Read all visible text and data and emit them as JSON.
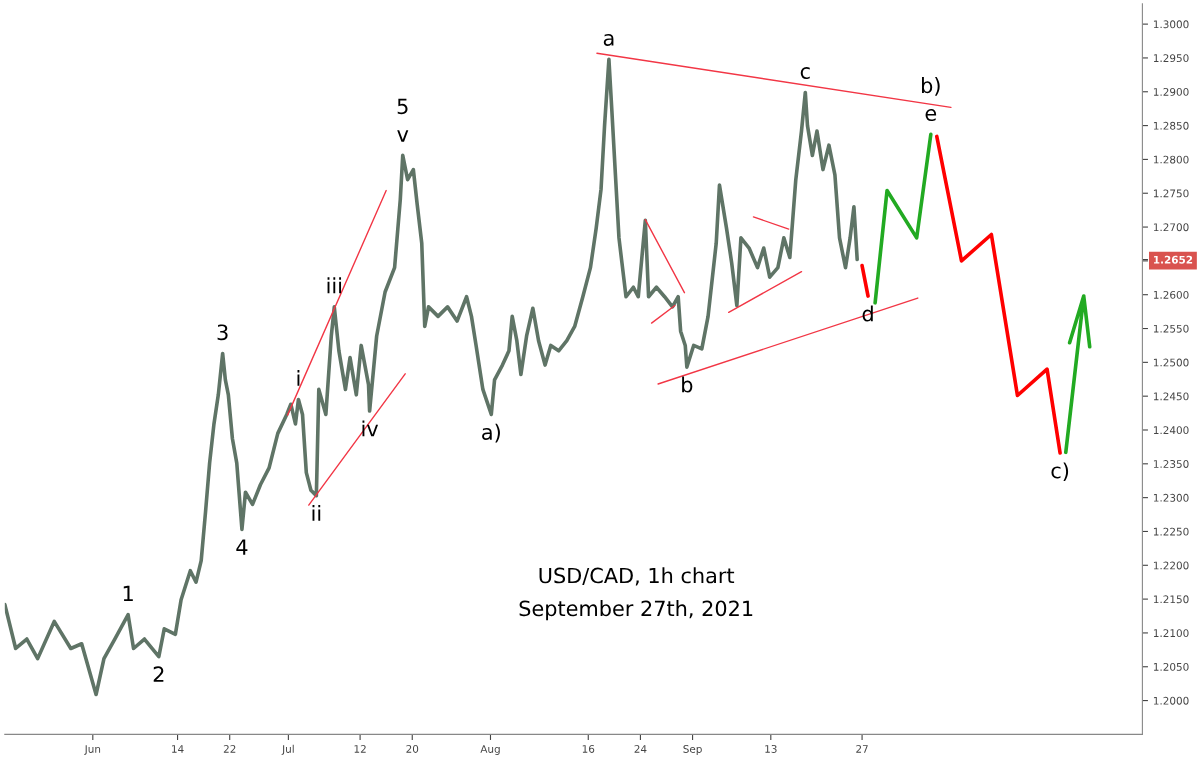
{
  "chart_data": {
    "type": "line",
    "xlim": [
      "2021-05-18T12:00",
      "2021-11-09T00:00"
    ],
    "ylim": [
      1.195,
      1.303
    ],
    "xticks": [
      {
        "value": "2021-06-01",
        "label": "Jun"
      },
      {
        "value": "2021-06-14",
        "label": "14"
      },
      {
        "value": "2021-06-22",
        "label": "22"
      },
      {
        "value": "2021-07-01",
        "label": "Jul"
      },
      {
        "value": "2021-07-12",
        "label": "12"
      },
      {
        "value": "2021-07-20",
        "label": "20"
      },
      {
        "value": "2021-08-01",
        "label": "Aug"
      },
      {
        "value": "2021-08-16",
        "label": "16"
      },
      {
        "value": "2021-08-24",
        "label": "24"
      },
      {
        "value": "2021-09-01",
        "label": "Sep"
      },
      {
        "value": "2021-09-13",
        "label": "13"
      },
      {
        "value": "2021-09-27",
        "label": "27"
      }
    ],
    "yticks": [
      {
        "value": 1.2,
        "label": "1.2000"
      },
      {
        "value": 1.205,
        "label": "1.2050"
      },
      {
        "value": 1.21,
        "label": "1.2100"
      },
      {
        "value": 1.215,
        "label": "1.2150"
      },
      {
        "value": 1.22,
        "label": "1.2200"
      },
      {
        "value": 1.225,
        "label": "1.2250"
      },
      {
        "value": 1.23,
        "label": "1.2300"
      },
      {
        "value": 1.235,
        "label": "1.2350"
      },
      {
        "value": 1.24,
        "label": "1.2400"
      },
      {
        "value": 1.245,
        "label": "1.2450"
      },
      {
        "value": 1.25,
        "label": "1.2500"
      },
      {
        "value": 1.255,
        "label": "1.2550"
      },
      {
        "value": 1.26,
        "label": "1.2600"
      },
      {
        "value": 1.265,
        "label": null
      },
      {
        "value": 1.2652,
        "label": "1.2652"
      },
      {
        "value": 1.27,
        "label": "1.2700"
      },
      {
        "value": 1.275,
        "label": "1.2750"
      },
      {
        "value": 1.28,
        "label": "1.2800"
      },
      {
        "value": 1.285,
        "label": "1.2850"
      },
      {
        "value": 1.29,
        "label": "1.2900"
      },
      {
        "value": 1.295,
        "label": "1.2950"
      },
      {
        "value": 1.3,
        "label": "1.3000"
      }
    ],
    "grid": false,
    "series": [
      {
        "color": "#5f7466",
        "x": [
          "2021-05-18T12:00",
          "2021-05-20T04:00",
          "2021-05-21T21:00",
          "2021-05-23T13:00",
          "2021-05-26T02:00",
          "2021-05-28T15:00",
          "2021-05-30T07:00",
          "2021-06-01T12:00",
          "2021-06-02T17:00",
          "2021-06-04T09:00",
          "2021-06-06T10:00",
          "2021-06-07T06:00",
          "2021-06-08T22:00",
          "2021-06-11T03:00",
          "2021-06-11T23:00",
          "2021-06-13T16:00",
          "2021-06-14T13:00",
          "2021-06-15T23:00",
          "2021-06-16T20:00",
          "2021-06-17T15:00",
          "2021-06-18T07:00",
          "2021-06-18T22:00",
          "2021-06-19T14:00",
          "2021-06-20T06:00",
          "2021-06-20T22:00",
          "2021-06-21T08:00",
          "2021-06-21T19:00",
          "2021-06-22T10:00",
          "2021-06-23T02:00",
          "2021-06-23T21:00",
          "2021-06-24T10:00",
          "2021-06-25T12:00",
          "2021-06-26T17:00",
          "2021-06-28T01:00",
          "2021-06-29T09:00",
          "2021-06-30T18:00",
          "2021-07-01T09:00",
          "2021-07-02T02:00",
          "2021-07-02T13:00",
          "2021-07-03T04:00",
          "2021-07-03T18:00",
          "2021-07-04T11:00",
          "2021-07-05T07:00",
          "2021-07-05T16:00",
          "2021-07-06T18:00",
          "2021-07-07T14:00",
          "2021-07-08T01:00",
          "2021-07-08T18:00",
          "2021-07-09T18:00",
          "2021-07-10T11:00",
          "2021-07-11T10:00",
          "2021-07-12T04:00",
          "2021-07-13T07:00",
          "2021-07-13T11:00",
          "2021-07-14T13:00",
          "2021-07-15T20:00",
          "2021-07-17T07:00",
          "2021-07-18T04:00",
          "2021-07-18T13:00",
          "2021-07-19T07:00",
          "2021-07-20T04:00",
          "2021-07-20T18:00",
          "2021-07-21T11:00",
          "2021-07-21T22:00",
          "2021-07-22T12:00",
          "2021-07-23T23:00",
          "2021-07-25T10:00",
          "2021-07-26T21:00",
          "2021-07-28T08:00",
          "2021-07-29T02:00",
          "2021-07-29T19:00",
          "2021-07-30T20:00",
          "2021-08-01T03:00",
          "2021-08-01T15:00",
          "2021-08-02T20:00",
          "2021-08-03T20:00",
          "2021-08-04T08:00",
          "2021-08-05T01:00",
          "2021-08-05T16:00",
          "2021-08-06T13:00",
          "2021-08-07T12:00",
          "2021-08-08T09:00",
          "2021-08-09T09:00",
          "2021-08-10T06:00",
          "2021-08-11T11:00",
          "2021-08-12T17:00",
          "2021-08-13T22:00",
          "2021-08-15T04:00",
          "2021-08-16T08:00",
          "2021-08-17T05:00",
          "2021-08-17T23:00",
          "2021-08-18T12:00",
          "2021-08-19T04:00",
          "2021-08-19T15:00",
          "2021-08-20T04:00",
          "2021-08-20T17:00",
          "2021-08-21T04:00",
          "2021-08-21T19:00",
          "2021-08-22T22:00",
          "2021-08-23T16:00",
          "2021-08-24T18:00",
          "2021-08-25T06:00",
          "2021-08-26T11:00",
          "2021-08-27T17:00",
          "2021-08-28T22:00",
          "2021-08-29T19:00",
          "2021-08-30T04:00",
          "2021-08-30T21:00",
          "2021-08-31T03:00",
          "2021-09-01T04:00",
          "2021-09-02T10:00",
          "2021-09-03T09:00",
          "2021-09-04T15:00",
          "2021-09-05T03:00",
          "2021-09-06T05:00",
          "2021-09-07T00:00",
          "2021-09-07T19:00",
          "2021-09-08T10:00",
          "2021-09-09T16:00",
          "2021-09-10T23:00",
          "2021-09-11T22:00",
          "2021-09-12T20:00",
          "2021-09-14T02:00",
          "2021-09-15T00:00",
          "2021-09-15T22:00",
          "2021-09-16T20:00",
          "2021-09-17T17:00",
          "2021-09-18T07:00",
          "2021-09-18T15:00",
          "2021-09-19T09:00",
          "2021-09-20T02:00",
          "2021-09-21T00:00",
          "2021-09-21T22:00",
          "2021-09-22T20:00",
          "2021-09-23T13:00",
          "2021-09-24T11:00",
          "2021-09-25T04:00",
          "2021-09-25T18:00",
          "2021-09-26T06:00"
        ],
        "value_labels": [
          null,
          null,
          null,
          null,
          null,
          null,
          null,
          null,
          null,
          null,
          null,
          null,
          null,
          null,
          null,
          null,
          null,
          null,
          null,
          null,
          null,
          null,
          null,
          null,
          null,
          null,
          null,
          null,
          null,
          null,
          null,
          null,
          null,
          null,
          null,
          null,
          null,
          null,
          null,
          null,
          null,
          null,
          null,
          null,
          null,
          null,
          null,
          null,
          null,
          null,
          null,
          null,
          null,
          null,
          null,
          null,
          null,
          null,
          null,
          null,
          null,
          null,
          null,
          null,
          null,
          null,
          null,
          null,
          null,
          null,
          null,
          null,
          null,
          null,
          null,
          null,
          null,
          null,
          null,
          null,
          null,
          null,
          null,
          null,
          null,
          null,
          null,
          null,
          null,
          null,
          null,
          null,
          null,
          null,
          null,
          null,
          null,
          null,
          null,
          null,
          null,
          null,
          null,
          null,
          null,
          null,
          null,
          null,
          null,
          null,
          null,
          null,
          null,
          null,
          null,
          null,
          null,
          null,
          null,
          null,
          null,
          null,
          null,
          null,
          null,
          null,
          null,
          null,
          null,
          null,
          null,
          null,
          null,
          null,
          null,
          null,
          null,
          null,
          null
        ],
        "values": [
          1.2142,
          1.2077,
          1.2091,
          1.2062,
          1.2117,
          1.2077,
          1.2084,
          1.2009,
          1.2062,
          1.2091,
          1.2127,
          1.2077,
          1.2091,
          1.2065,
          1.2106,
          1.2098,
          1.2149,
          1.2192,
          1.2175,
          1.2207,
          1.2279,
          1.2351,
          1.2409,
          1.2452,
          1.2513,
          1.2474,
          1.2452,
          1.2387,
          1.2351,
          1.2253,
          1.2308,
          1.229,
          1.2319,
          1.2344,
          1.2395,
          1.2423,
          1.2438,
          1.2409,
          1.2445,
          1.2423,
          1.2337,
          1.2311,
          1.2303,
          1.246,
          1.2423,
          1.2539,
          1.2582,
          1.2517,
          1.246,
          1.2507,
          1.2452,
          1.2525,
          1.2467,
          1.2428,
          1.2539,
          1.2604,
          1.264,
          1.2741,
          1.2806,
          1.277,
          1.2785,
          1.2734,
          1.2676,
          1.2553,
          1.2582,
          1.2568,
          1.2582,
          1.2561,
          1.2597,
          1.2568,
          1.2525,
          1.246,
          1.2423,
          1.2474,
          1.2496,
          1.2517,
          1.2568,
          1.2532,
          1.2482,
          1.2539,
          1.258,
          1.2532,
          1.2496,
          1.2525,
          1.2517,
          1.2532,
          1.2553,
          1.2597,
          1.264,
          1.2698,
          1.2756,
          1.285,
          1.2948,
          1.2871,
          1.2777,
          1.2684,
          1.2647,
          1.2597,
          1.2611,
          1.2597,
          1.271,
          1.2597,
          1.2611,
          1.2597,
          1.2582,
          1.2597,
          1.2546,
          1.2525,
          1.2493,
          1.2525,
          1.252,
          1.2568,
          1.2676,
          1.2762,
          1.2698,
          1.2647,
          1.2584,
          1.2684,
          1.2669,
          1.264,
          1.2669,
          1.2626,
          1.264,
          1.2684,
          1.2655,
          1.277,
          1.2842,
          1.2899,
          1.285,
          1.2806,
          1.2842,
          1.2785,
          1.2821,
          1.2777,
          1.2684,
          1.264,
          1.2684,
          1.273,
          1.2652
        ]
      },
      {
        "color": "#ff0000",
        "x": [
          "2021-09-27T00:00",
          "2021-09-27T22:00",
          "2021-10-03T00:00",
          "2021-10-08T11:00",
          "2021-10-12T06:00",
          "2021-10-16T20:00",
          "2021-10-20T20:00",
          "2021-10-25T09:00",
          "2021-10-27T09:00"
        ],
        "values": [
          1.2643,
          1.2598,
          null,
          1.2834,
          1.265,
          1.2689,
          1.2451,
          1.249,
          1.2366
        ]
      },
      {
        "color": "#22aa22",
        "x": [
          "2021-09-29T00:00",
          "2021-09-30T20:00",
          "2021-10-05T09:00",
          "2021-10-07T13:00",
          "2021-10-20T00:00",
          "2021-10-28T06:00",
          "2021-10-31T00:00",
          "2021-10-31T22:00",
          "2021-10-30T00:00",
          "2021-10-28T20:00",
          "2021-10-31T00:00"
        ],
        "values": [
          1.2588,
          1.2754,
          1.2684,
          1.2837,
          null,
          1.2367,
          1.2598,
          1.2523,
          null,
          1.2529,
          1.2598
        ]
      },
      {
        "color": "#f23645",
        "x": [
          "2021-06-30T21:00",
          "2021-07-16T00:00"
        ],
        "values": [
          1.2422,
          1.2754
        ]
      },
      {
        "color": "#f23645",
        "x": [
          "2021-07-04T03:00",
          "2021-07-18T22:00"
        ],
        "values": [
          1.2289,
          1.2483
        ]
      },
      {
        "color": "#f23645",
        "x": [
          "2021-08-17T08:00",
          "2021-10-10T15:00"
        ],
        "values": [
          1.2957,
          1.2877
        ]
      },
      {
        "color": "#f23645",
        "x": [
          "2021-08-26T17:00",
          "2021-10-05T13:00"
        ],
        "values": [
          1.2468,
          1.2595
        ]
      },
      {
        "color": "#f23645",
        "x": [
          "2021-08-24T18:00",
          "2021-08-30T18:00"
        ],
        "values": [
          1.2711,
          1.2603
        ]
      },
      {
        "color": "#f23645",
        "x": [
          "2021-08-25T17:00",
          "2021-08-29T07:00"
        ],
        "values": [
          1.2558,
          1.2584
        ]
      },
      {
        "color": "#f23645",
        "x": [
          "2021-09-06T13:00",
          "2021-09-17T17:00"
        ],
        "values": [
          1.2574,
          1.2634
        ]
      },
      {
        "color": "#f23645",
        "x": [
          "2021-09-10T08:00",
          "2021-09-15T18:00"
        ],
        "values": [
          1.2715,
          1.2697
        ]
      }
    ],
    "annotations": [
      {
        "text": "1",
        "x": "2021-06-06T10:00",
        "y": 1.2127
      },
      {
        "text": "2",
        "x": "2021-06-11T03:00",
        "y": 1.2065
      },
      {
        "text": "3",
        "x": "2021-06-20T22:00",
        "y": 1.2513
      },
      {
        "text": "4",
        "x": "2021-06-23T21:00",
        "y": 1.2253
      },
      {
        "text": "5",
        "x": "2021-07-18T13:00",
        "y": 1.2806
      },
      {
        "text": "v",
        "x": "2021-07-18T13:00",
        "y": 1.2806
      },
      {
        "text": "i",
        "x": "2021-07-02T13:00",
        "y": 1.2445
      },
      {
        "text": "ii",
        "x": "2021-07-05T07:00",
        "y": 1.2303
      },
      {
        "text": "iii",
        "x": "2021-07-08T01:00",
        "y": 1.2582
      },
      {
        "text": "iv",
        "x": "2021-07-13T11:00",
        "y": 1.2428
      },
      {
        "text": "a)",
        "x": "2021-08-01T03:00",
        "y": 1.2423
      },
      {
        "text": "a",
        "x": "2021-08-19T04:00",
        "y": 1.2948
      },
      {
        "text": "b",
        "x": "2021-08-31T03:00",
        "y": 1.2493
      },
      {
        "text": "c",
        "x": "2021-09-18T07:00",
        "y": 1.2899
      },
      {
        "text": "d",
        "x": "2021-09-27T22:00",
        "y": 1.2598
      },
      {
        "text": "b)",
        "x": "2021-10-07T13:00",
        "y": 1.2837
      },
      {
        "text": "e",
        "x": "2021-10-07T13:00",
        "y": 1.2837
      },
      {
        "text": "c)",
        "x": "2021-10-27T09:00",
        "y": 1.2366
      },
      "USD/CAD, 1h chart",
      "September 27th, 2021"
    ]
  }
}
